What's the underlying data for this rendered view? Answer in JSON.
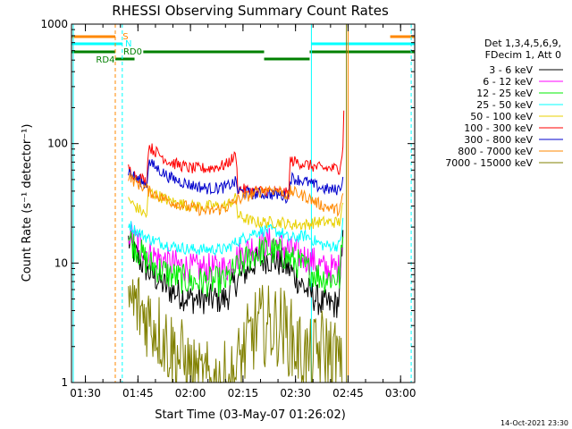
{
  "chart_data": {
    "type": "line",
    "title": "RHESSI Observing Summary Count Rates",
    "xlabel": "Start Time (03-May-07 01:26:02)",
    "ylabel": "Count Rate (s⁻¹ detector⁻¹)",
    "x_unit": "minutes after 01:26:02",
    "xlim": [
      0,
      98
    ],
    "ylim": [
      1,
      1000
    ],
    "y_scale": "log",
    "x_ticks": [
      "01:30",
      "01:45",
      "02:00",
      "02:15",
      "02:30",
      "02:45",
      "03:00"
    ],
    "y_ticks": [
      "1",
      "10",
      "100",
      "1000"
    ],
    "grid": false,
    "legend_placement": "right",
    "legend_header": [
      "Det 1,3,4,5,6,9,",
      "FDecim 1, Att 0"
    ],
    "timestamp": "14-Oct-2021 23:30",
    "state_labels": [
      "S",
      "N",
      "RD0",
      "RD4"
    ],
    "series": [
      {
        "name": "3 - 6 keV",
        "color": "#000000",
        "x": [
          0,
          15.9,
          16,
          18,
          22,
          28,
          34,
          39,
          44,
          47,
          52,
          56,
          60,
          62,
          67,
          70,
          72,
          74,
          75.5,
          76.5,
          77.5,
          78
        ],
        "y": [
          null,
          null,
          16,
          12,
          8.5,
          6,
          5,
          5,
          5,
          7,
          10,
          11,
          10,
          9,
          6,
          5,
          4.5,
          4.5,
          4.5,
          5,
          15,
          null
        ]
      },
      {
        "name": "6 - 12 keV",
        "color": "#ff00ff",
        "x": [
          0,
          15.9,
          16,
          18,
          22,
          28,
          34,
          39,
          44,
          47,
          52,
          56,
          60,
          62,
          67,
          70,
          72,
          74,
          75.5,
          76.5,
          77.5,
          78
        ],
        "y": [
          null,
          null,
          19,
          16,
          12,
          10,
          9,
          9,
          9,
          11,
          14,
          15,
          14,
          13,
          11,
          10,
          9,
          9,
          9,
          9,
          18,
          null
        ]
      },
      {
        "name": "12 - 25 keV",
        "color": "#00ee00",
        "x": [
          0,
          15.9,
          16,
          18,
          22,
          28,
          34,
          39,
          44,
          47,
          52,
          56,
          60,
          62,
          67,
          70,
          72,
          74,
          75.5,
          76.5,
          77.5,
          78
        ],
        "y": [
          null,
          null,
          17,
          14,
          10,
          8,
          7,
          7,
          7,
          9,
          12,
          13,
          12,
          11,
          9,
          8,
          7.5,
          7.5,
          7.5,
          7.5,
          16,
          null
        ]
      },
      {
        "name": "25 - 50 keV",
        "color": "#00ffff",
        "x": [
          0,
          15.9,
          16,
          18,
          22,
          28,
          34,
          39,
          44,
          47,
          52,
          56,
          60,
          62,
          67,
          70,
          72,
          74,
          75.5,
          76.5,
          77.5,
          78
        ],
        "y": [
          null,
          null,
          22,
          19,
          16,
          14,
          13,
          13,
          13,
          15,
          18,
          19,
          18,
          16,
          17,
          15,
          14,
          14,
          14,
          14,
          22,
          null
        ]
      },
      {
        "name": "50 - 100 keV",
        "color": "#e8d000",
        "x": [
          0,
          15.9,
          16,
          18,
          21.5,
          22,
          28,
          34,
          39,
          44,
          47,
          47.5,
          52,
          56,
          60,
          62,
          67,
          70,
          72,
          74,
          75.5,
          76.5,
          77.5,
          78
        ],
        "y": [
          null,
          null,
          35,
          30,
          25,
          40,
          33,
          30,
          30,
          30,
          35,
          25,
          22,
          22,
          22,
          21,
          21,
          22,
          22,
          22,
          22,
          22,
          30,
          null
        ]
      },
      {
        "name": "100 - 300 keV",
        "color": "#ff0000",
        "x": [
          0,
          15.9,
          16,
          18,
          21.5,
          22,
          28,
          34,
          39,
          44,
          47,
          47.5,
          52,
          56,
          60,
          62,
          62.5,
          67,
          70,
          72,
          74,
          75.5,
          76.5,
          77.5,
          77.8,
          78
        ],
        "y": [
          null,
          null,
          63,
          55,
          48,
          95,
          70,
          62,
          62,
          66,
          80,
          42,
          40,
          40,
          39,
          38,
          72,
          67,
          63,
          62,
          62,
          62,
          62,
          90,
          230,
          null
        ]
      },
      {
        "name": "300 - 800 keV",
        "color": "#0000cc",
        "x": [
          0,
          15.9,
          16,
          18,
          21.5,
          22,
          28,
          34,
          39,
          44,
          47,
          47.5,
          52,
          56,
          60,
          62,
          62.5,
          67,
          70,
          72,
          74,
          75.5,
          76.5,
          77.5,
          78
        ],
        "y": [
          null,
          null,
          60,
          52,
          45,
          70,
          52,
          45,
          42,
          43,
          48,
          40,
          38,
          38,
          37,
          35,
          52,
          48,
          44,
          42,
          41,
          41,
          42,
          50,
          null
        ]
      },
      {
        "name": "800 - 7000 keV",
        "color": "#ff8800",
        "x": [
          0,
          15.9,
          16,
          18,
          21.5,
          22,
          28,
          34,
          39,
          44,
          47,
          47.5,
          52,
          56,
          60,
          62,
          62.5,
          67,
          70,
          72,
          74,
          75.5,
          76.5,
          77.5,
          78
        ],
        "y": [
          null,
          null,
          55,
          48,
          42,
          40,
          33,
          29,
          27,
          29,
          33,
          34,
          38,
          42,
          40,
          36,
          40,
          36,
          32,
          30,
          29,
          28,
          28,
          35,
          null
        ]
      },
      {
        "name": "7000 - 15000 keV",
        "color": "#808000",
        "x": [
          0,
          15.9,
          16,
          18,
          20,
          24,
          28,
          32,
          34,
          36,
          40,
          46,
          48,
          50,
          53,
          56,
          60,
          62,
          64,
          68,
          72,
          76,
          77.5
        ],
        "y": [
          null,
          null,
          5,
          4.5,
          4,
          3,
          2,
          1.5,
          1.2,
          1,
          1,
          1,
          1.5,
          2,
          3,
          3,
          3,
          2.5,
          2,
          1.5,
          2,
          1.5,
          1
        ]
      }
    ]
  }
}
